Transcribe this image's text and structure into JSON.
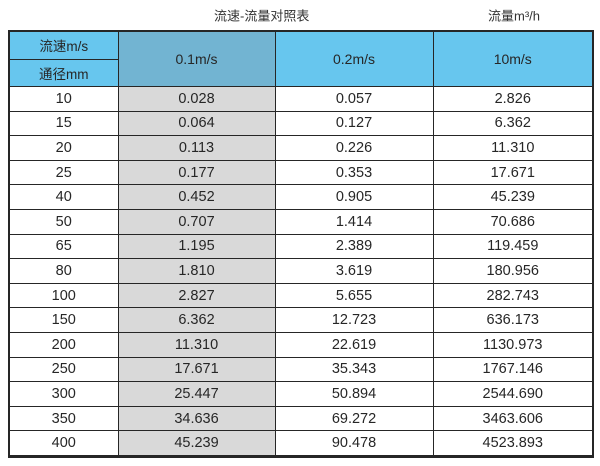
{
  "header": {
    "title": "流速-流量对照表",
    "unit_label": "流量m³/h"
  },
  "table": {
    "corner_top": "流速m/s",
    "corner_bottom": "通径mm",
    "col_headers": [
      "0.1m/s",
      "0.2m/s",
      "10m/s"
    ],
    "rows": [
      {
        "dn": "10",
        "v1": "0.028",
        "v2": "0.057",
        "v3": "2.826"
      },
      {
        "dn": "15",
        "v1": "0.064",
        "v2": "0.127",
        "v3": "6.362"
      },
      {
        "dn": "20",
        "v1": "0.113",
        "v2": "0.226",
        "v3": "11.310"
      },
      {
        "dn": "25",
        "v1": "0.177",
        "v2": "0.353",
        "v3": "17.671"
      },
      {
        "dn": "40",
        "v1": "0.452",
        "v2": "0.905",
        "v3": "45.239"
      },
      {
        "dn": "50",
        "v1": "0.707",
        "v2": "1.414",
        "v3": "70.686"
      },
      {
        "dn": "65",
        "v1": "1.195",
        "v2": "2.389",
        "v3": "119.459"
      },
      {
        "dn": "80",
        "v1": "1.810",
        "v2": "3.619",
        "v3": "180.956"
      },
      {
        "dn": "100",
        "v1": "2.827",
        "v2": "5.655",
        "v3": "282.743"
      },
      {
        "dn": "150",
        "v1": "6.362",
        "v2": "12.723",
        "v3": "636.173"
      },
      {
        "dn": "200",
        "v1": "11.310",
        "v2": "22.619",
        "v3": "1130.973"
      },
      {
        "dn": "250",
        "v1": "17.671",
        "v2": "35.343",
        "v3": "1767.146"
      },
      {
        "dn": "300",
        "v1": "25.447",
        "v2": "50.894",
        "v3": "2544.690"
      },
      {
        "dn": "350",
        "v1": "34.636",
        "v2": "69.272",
        "v3": "3463.606"
      },
      {
        "dn": "400",
        "v1": "45.239",
        "v2": "90.478",
        "v3": "4523.893"
      }
    ]
  },
  "colors": {
    "header_blue": "#67C6EE",
    "header_blue_dark": "#72B4D2",
    "column_gray": "#D9D9D9",
    "border": "#262626",
    "text": "#262626"
  },
  "chart_data": {
    "type": "table",
    "title": "流速-流量对照表",
    "unit_annotation": "流量m³/h",
    "row_axis_label": "通径mm",
    "col_axis_label": "流速m/s",
    "columns": [
      "通径mm",
      "0.1m/s",
      "0.2m/s",
      "10m/s"
    ],
    "rows": [
      [
        10,
        0.028,
        0.057,
        2.826
      ],
      [
        15,
        0.064,
        0.127,
        6.362
      ],
      [
        20,
        0.113,
        0.226,
        11.31
      ],
      [
        25,
        0.177,
        0.353,
        17.671
      ],
      [
        40,
        0.452,
        0.905,
        45.239
      ],
      [
        50,
        0.707,
        1.414,
        70.686
      ],
      [
        65,
        1.195,
        2.389,
        119.459
      ],
      [
        80,
        1.81,
        3.619,
        180.956
      ],
      [
        100,
        2.827,
        5.655,
        282.743
      ],
      [
        150,
        6.362,
        12.723,
        636.173
      ],
      [
        200,
        11.31,
        22.619,
        1130.973
      ],
      [
        250,
        17.671,
        35.343,
        1767.146
      ],
      [
        300,
        25.447,
        50.894,
        2544.69
      ],
      [
        350,
        34.636,
        69.272,
        3463.606
      ],
      [
        400,
        45.239,
        90.478,
        4523.893
      ]
    ]
  }
}
